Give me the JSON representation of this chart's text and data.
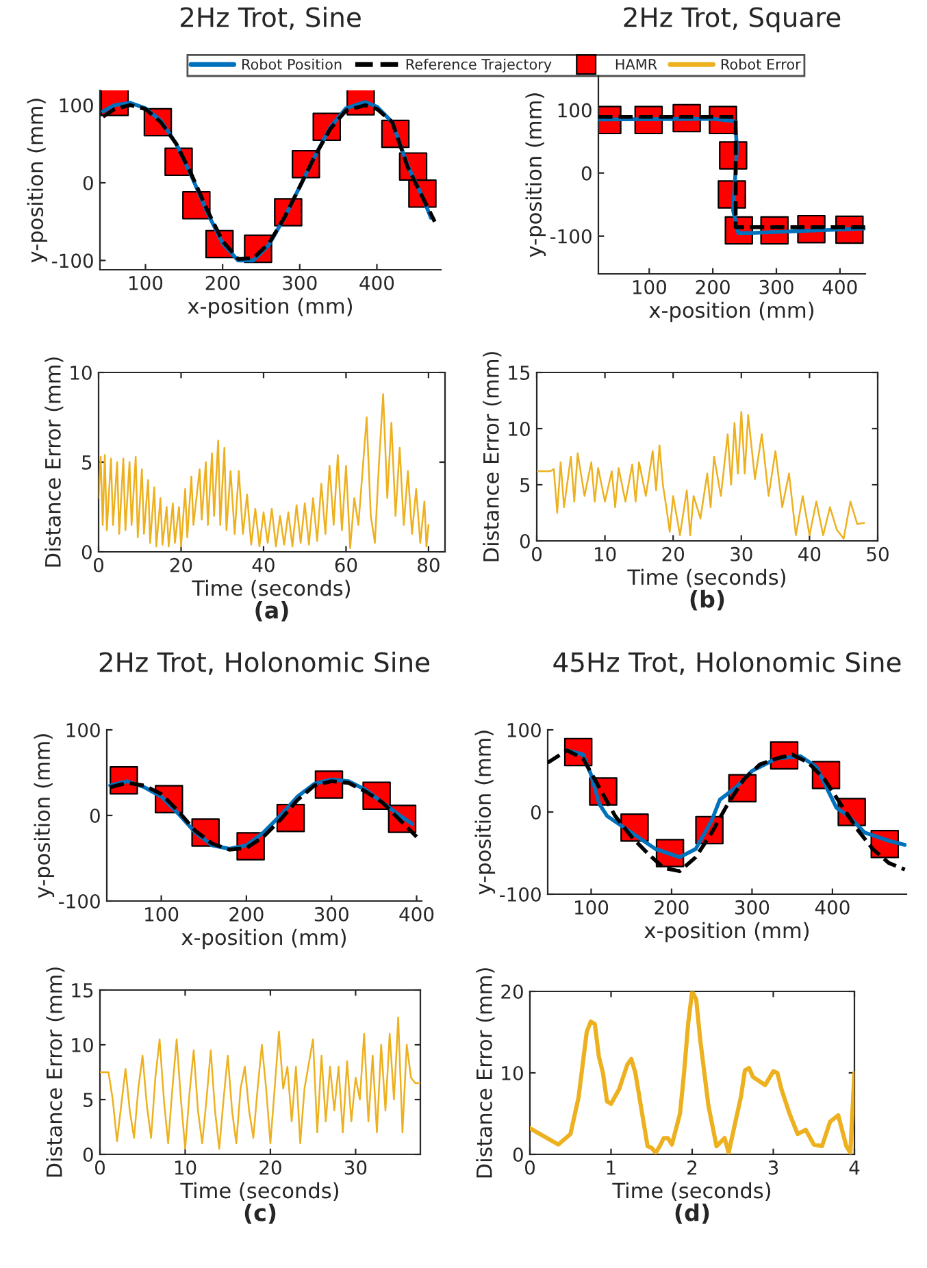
{
  "chart_data": [
    {
      "type": "line",
      "title": "2Hz Trot, Sine",
      "xlabel": "x-position (mm)",
      "ylabel": "y-position (mm)",
      "xlim": [
        41,
        483
      ],
      "xticks": [
        100,
        200,
        300,
        400
      ],
      "ylim": [
        -112,
        119
      ],
      "yticks": [
        -100,
        0,
        100
      ],
      "legend": "top",
      "series": [
        {
          "name": "Robot Position",
          "color": "#0072bd",
          "line_style": "solid",
          "x": [
            45,
            60,
            80,
            100,
            120,
            140,
            160,
            180,
            200,
            220,
            240,
            260,
            280,
            300,
            320,
            340,
            360,
            385,
            400,
            420,
            440,
            460,
            470
          ],
          "values": [
            92,
            100,
            103,
            96,
            80,
            50,
            8,
            -38,
            -78,
            -100,
            -100,
            -80,
            -45,
            -5,
            35,
            72,
            96,
            104,
            98,
            78,
            22,
            -20,
            -45
          ]
        },
        {
          "name": "Reference Trajectory",
          "color": "#000000",
          "line_style": "dashed",
          "x": [
            45,
            60,
            80,
            100,
            120,
            140,
            160,
            180,
            200,
            220,
            240,
            260,
            280,
            300,
            320,
            340,
            360,
            385,
            400,
            420,
            440,
            460,
            475
          ],
          "values": [
            85,
            95,
            100,
            95,
            78,
            50,
            10,
            -35,
            -75,
            -98,
            -97,
            -78,
            -45,
            -5,
            35,
            70,
            93,
            100,
            95,
            78,
            20,
            -20,
            -50
          ]
        },
        {
          "name": "HAMR",
          "type": "scatter",
          "color": "#ff0000",
          "marker": "square",
          "x": [
            60,
            116,
            143,
            166,
            196,
            246,
            285,
            308,
            335,
            379,
            424,
            447,
            459
          ],
          "values": [
            104,
            78,
            27,
            -29,
            -79,
            -85,
            -38,
            24,
            72,
            105,
            63,
            21,
            -14
          ]
        }
      ]
    },
    {
      "type": "line",
      "title": "2Hz Trot, Square",
      "xlabel": "x-position (mm)",
      "ylabel": "y-position (mm)",
      "xlim": [
        20,
        440
      ],
      "xticks": [
        100,
        200,
        300,
        400
      ],
      "ylim": [
        -160,
        155
      ],
      "yticks": [
        -100,
        0,
        100
      ],
      "series": [
        {
          "color": "#0072bd",
          "line_style": "solid",
          "x": [
            20,
            200,
            235,
            238,
            232,
            240,
            260,
            440
          ],
          "values": [
            85,
            86,
            82,
            40,
            -60,
            -95,
            -95,
            -88
          ]
        },
        {
          "color": "#000000",
          "line_style": "dashed",
          "x": [
            20,
            236,
            236,
            440
          ],
          "values": [
            89,
            89,
            -86,
            -86
          ]
        },
        {
          "type": "scatter",
          "color": "#ff0000",
          "marker": "square",
          "x": [
            34,
            99,
            159,
            216,
            232,
            230,
            241,
            297,
            355,
            415
          ],
          "values": [
            84,
            84,
            87,
            84,
            28,
            -34,
            -91,
            -91,
            -89,
            -90
          ]
        }
      ]
    },
    {
      "type": "line",
      "xlabel": "Time (seconds)",
      "ylabel": "Distance Error (mm)",
      "annotations": [
        "(a)"
      ],
      "xlim": [
        0,
        84
      ],
      "xticks": [
        0,
        20,
        40,
        60,
        80
      ],
      "ylim": [
        0,
        10
      ],
      "yticks": [
        0,
        5,
        10
      ],
      "series": [
        {
          "name": "Robot Error",
          "color": "#edb120",
          "line_style": "solid",
          "x": [
            0,
            0.5,
            1,
            1.5,
            2,
            3,
            3.5,
            4.5,
            5,
            6,
            6.5,
            7.5,
            8,
            9,
            9.5,
            10.5,
            11,
            12,
            12.5,
            13.5,
            14,
            15,
            15.5,
            16.5,
            17,
            18,
            18.5,
            19.5,
            20,
            21,
            21.5,
            22.5,
            23,
            24.5,
            25,
            26,
            26.5,
            27.5,
            28,
            29,
            29.5,
            30.5,
            31,
            32,
            33,
            34,
            35,
            36,
            37,
            38,
            39,
            40,
            41,
            42,
            43,
            44,
            45,
            46,
            47,
            48,
            49,
            50,
            51,
            52,
            53,
            54,
            55,
            56,
            57,
            58,
            59,
            60,
            61,
            62,
            63,
            64,
            65,
            66,
            67,
            68,
            69,
            70,
            71,
            72,
            73,
            74,
            75,
            76,
            77,
            78,
            79,
            79.5,
            80
          ],
          "values": [
            3,
            5.3,
            1.5,
            5.4,
            1.2,
            5.2,
            1.5,
            5,
            1,
            5.2,
            1.2,
            5,
            1.5,
            5.3,
            0.8,
            4.6,
            1,
            4,
            0.5,
            3.6,
            0.3,
            3,
            0.4,
            2.5,
            0.3,
            2.7,
            0.5,
            2.5,
            0.3,
            3.5,
            0.8,
            4.2,
            1.5,
            4.6,
            1.8,
            5,
            1.5,
            5.5,
            2,
            6.2,
            1.5,
            5.8,
            1.2,
            4.5,
            1,
            4.5,
            1,
            3.2,
            0.4,
            2.4,
            0.3,
            2.2,
            0.5,
            2.4,
            0.3,
            2,
            0.4,
            2.2,
            0.3,
            2.6,
            0.5,
            2.7,
            0.4,
            3,
            0.6,
            3.8,
            1,
            4.8,
            1.5,
            5.4,
            1.2,
            4.8,
            0.2,
            3,
            1.5,
            4.5,
            7.5,
            2,
            0.5,
            5,
            8.8,
            3,
            7.2,
            2,
            5.8,
            1.5,
            4.5,
            1,
            3.5,
            0.5,
            2.8,
            0.3,
            1.5
          ]
        }
      ]
    },
    {
      "type": "line",
      "xlabel": "Time (seconds)",
      "ylabel": "Distance Error (mm)",
      "annotations": [
        "(b)"
      ],
      "xlim": [
        0,
        50
      ],
      "xticks": [
        0,
        10,
        20,
        30,
        40,
        50
      ],
      "ylim": [
        0,
        15
      ],
      "yticks": [
        0,
        5,
        10,
        15
      ],
      "series": [
        {
          "color": "#edb120",
          "line_style": "solid",
          "x": [
            0,
            2,
            2.5,
            3,
            3.5,
            4,
            5,
            5.5,
            6,
            7,
            8,
            8.5,
            9,
            10,
            11,
            11.5,
            12,
            13,
            14,
            14.5,
            15,
            16,
            17,
            17.5,
            18,
            18.5,
            19,
            19.5,
            20,
            21,
            22,
            22.5,
            23,
            24,
            25,
            25.5,
            26,
            27,
            28,
            28.5,
            29,
            29.5,
            30,
            30.5,
            31,
            32,
            33,
            34,
            35,
            36,
            37,
            38,
            39,
            40,
            41,
            42,
            43,
            44,
            45,
            46,
            47,
            48
          ],
          "values": [
            6.2,
            6.2,
            6.4,
            2.5,
            7,
            3,
            7.5,
            3.5,
            7.8,
            4,
            7,
            3.5,
            6.5,
            3.5,
            6.2,
            3,
            6.5,
            3.5,
            6.8,
            3.5,
            7,
            4,
            8,
            4.5,
            8.5,
            5,
            3,
            0.8,
            4,
            0.5,
            4.5,
            0.5,
            4,
            2,
            6,
            3,
            7.5,
            4,
            9.5,
            5,
            10.5,
            6,
            11.5,
            6,
            11.2,
            5.5,
            9.5,
            4,
            8,
            3,
            6,
            0.5,
            4,
            0.5,
            3.5,
            0.5,
            3,
            1,
            0.2,
            3.5,
            1.5,
            1.6
          ]
        }
      ]
    },
    {
      "type": "line",
      "title": "2Hz Trot, Holonomic Sine",
      "xlabel": "x-position (mm)",
      "ylabel": "y-position (mm)",
      "xlim": [
        36,
        406
      ],
      "xticks": [
        100,
        200,
        300,
        400
      ],
      "ylim": [
        -100,
        100
      ],
      "yticks": [
        -100,
        0,
        100
      ],
      "series": [
        {
          "color": "#0072bd",
          "line_style": "solid",
          "x": [
            40,
            60,
            80,
            100,
            120,
            140,
            160,
            180,
            200,
            220,
            240,
            260,
            280,
            300,
            320,
            340,
            360,
            380,
            395
          ],
          "values": [
            35,
            40,
            33,
            22,
            2,
            -20,
            -35,
            -39,
            -35,
            -20,
            0,
            22,
            37,
            42,
            40,
            30,
            15,
            0,
            -10
          ]
        },
        {
          "color": "#000000",
          "line_style": "dashed",
          "x": [
            40,
            60,
            80,
            100,
            120,
            140,
            160,
            180,
            200,
            220,
            240,
            260,
            280,
            300,
            320,
            340,
            360,
            380,
            400
          ],
          "values": [
            33,
            38,
            35,
            25,
            5,
            -18,
            -33,
            -40,
            -38,
            -25,
            -5,
            18,
            35,
            40,
            38,
            28,
            15,
            -5,
            -25
          ]
        },
        {
          "type": "scatter",
          "color": "#ff0000",
          "marker": "square",
          "x": [
            56,
            109,
            152,
            205,
            252,
            297,
            353,
            383
          ],
          "values": [
            41,
            19,
            -20,
            -36,
            -3,
            36,
            23,
            -4
          ]
        }
      ]
    },
    {
      "type": "line",
      "title": "45Hz Trot, Holonomic Sine",
      "xlabel": "x-position (mm)",
      "ylabel": "y-position (mm)",
      "xlim": [
        46,
        492
      ],
      "xticks": [
        100,
        200,
        300,
        400
      ],
      "ylim": [
        -100,
        100
      ],
      "yticks": [
        -100,
        0,
        100
      ],
      "series": [
        {
          "color": "#0072bd",
          "line_style": "solid",
          "x": [
            70,
            90,
            100,
            110,
            120,
            150,
            180,
            210,
            230,
            250,
            260,
            280,
            300,
            330,
            360,
            380,
            395,
            405,
            420,
            440,
            470,
            490
          ],
          "values": [
            75,
            70,
            45,
            10,
            -5,
            -25,
            -45,
            -55,
            -45,
            -10,
            15,
            30,
            50,
            65,
            68,
            55,
            25,
            5,
            -5,
            -25,
            -35,
            -40
          ]
        },
        {
          "color": "#000000",
          "line_style": "dashed",
          "x": [
            46,
            70,
            90,
            110,
            130,
            150,
            170,
            190,
            210,
            230,
            250,
            270,
            290,
            310,
            330,
            350,
            370,
            390,
            410,
            430,
            450,
            470,
            490
          ],
          "values": [
            60,
            75,
            65,
            30,
            -5,
            -30,
            -50,
            -68,
            -72,
            -55,
            -25,
            10,
            40,
            58,
            65,
            70,
            60,
            40,
            10,
            -20,
            -45,
            -62,
            -70
          ]
        },
        {
          "type": "scatter",
          "color": "#ff0000",
          "marker": "square",
          "x": [
            84,
            115,
            154,
            198,
            247,
            288,
            340,
            392,
            424,
            465
          ],
          "values": [
            73,
            25,
            -19,
            -50,
            -22,
            29,
            69,
            45,
            0,
            -39
          ]
        }
      ]
    },
    {
      "type": "line",
      "xlabel": "Time (seconds)",
      "ylabel": "Distance Error (mm)",
      "annotations": [
        "(c)"
      ],
      "xlim": [
        0,
        37.6
      ],
      "xticks": [
        0,
        10,
        20,
        30
      ],
      "ylim": [
        0,
        15
      ],
      "yticks": [
        0,
        5,
        10,
        15
      ],
      "series": [
        {
          "color": "#edb120",
          "line_style": "solid",
          "x": [
            0,
            1,
            1.5,
            2,
            2.5,
            3,
            3.5,
            4,
            4.5,
            5,
            5.5,
            6,
            6.5,
            7,
            7.5,
            8,
            8.5,
            9,
            9.5,
            10,
            10.5,
            11,
            11.5,
            12,
            12.5,
            13,
            13.5,
            14,
            14.5,
            15,
            15.5,
            16,
            16.5,
            17,
            17.5,
            18,
            18.5,
            19,
            19.5,
            20,
            20.5,
            21,
            21.5,
            22,
            22.5,
            23,
            23.5,
            24,
            25,
            25.5,
            26,
            26.5,
            27,
            27.5,
            28,
            28.5,
            29,
            29.5,
            30,
            30.5,
            31,
            31.5,
            32,
            32.5,
            33,
            33.5,
            34,
            34.5,
            35,
            35.5,
            36,
            36.5,
            37,
            37.6
          ],
          "values": [
            7.5,
            7.5,
            5,
            1.2,
            4.5,
            7.8,
            4,
            1.5,
            6,
            9,
            4.5,
            1.5,
            7,
            10.5,
            5,
            1,
            6,
            10.5,
            5,
            0.5,
            5.5,
            9.5,
            4,
            1,
            5,
            9.5,
            4,
            0.5,
            5,
            9,
            4,
            1,
            6,
            8,
            4,
            1.5,
            6,
            10,
            6,
            1,
            6,
            11.2,
            6,
            8,
            3,
            8,
            1,
            6,
            10.5,
            2,
            9,
            3,
            8,
            4,
            8,
            2,
            8.5,
            3,
            7,
            5,
            11,
            3,
            9,
            2,
            10,
            4,
            11,
            5,
            12.5,
            2,
            10,
            7,
            6.5,
            6.5
          ]
        }
      ]
    },
    {
      "type": "line",
      "xlabel": "Time (seconds)",
      "ylabel": "Distance Error (mm)",
      "annotations": [
        "(d)"
      ],
      "xlim": [
        0,
        4
      ],
      "xticks": [
        0,
        1,
        2,
        3,
        4
      ],
      "ylim": [
        0,
        20
      ],
      "yticks": [
        0,
        10,
        20
      ],
      "series": [
        {
          "color": "#edb120",
          "line_style": "solid",
          "x": [
            0,
            0.35,
            0.5,
            0.6,
            0.7,
            0.75,
            0.8,
            0.85,
            0.9,
            0.95,
            1.0,
            1.1,
            1.2,
            1.25,
            1.3,
            1.4,
            1.45,
            1.5,
            1.55,
            1.6,
            1.65,
            1.7,
            1.75,
            1.85,
            1.9,
            1.95,
            2.0,
            2.05,
            2.1,
            2.2,
            2.3,
            2.4,
            2.45,
            2.5,
            2.6,
            2.65,
            2.7,
            2.75,
            2.9,
            3.0,
            3.05,
            3.1,
            3.2,
            3.3,
            3.4,
            3.5,
            3.6,
            3.7,
            3.8,
            3.9,
            3.95,
            4.0
          ],
          "values": [
            3.2,
            1.2,
            2.5,
            7,
            15,
            16.3,
            16,
            12,
            10,
            6.5,
            6.2,
            8,
            11,
            11.7,
            10,
            4,
            1,
            0.8,
            0.2,
            1,
            2,
            2,
            1.2,
            5,
            10,
            16,
            20,
            19,
            14,
            6,
            1,
            2,
            0.2,
            2.5,
            7,
            10.3,
            10.6,
            9.5,
            8.5,
            10.2,
            10,
            8,
            5,
            2.5,
            3,
            1.2,
            1,
            4,
            4.8,
            1,
            0.2,
            10
          ]
        }
      ]
    }
  ]
}
